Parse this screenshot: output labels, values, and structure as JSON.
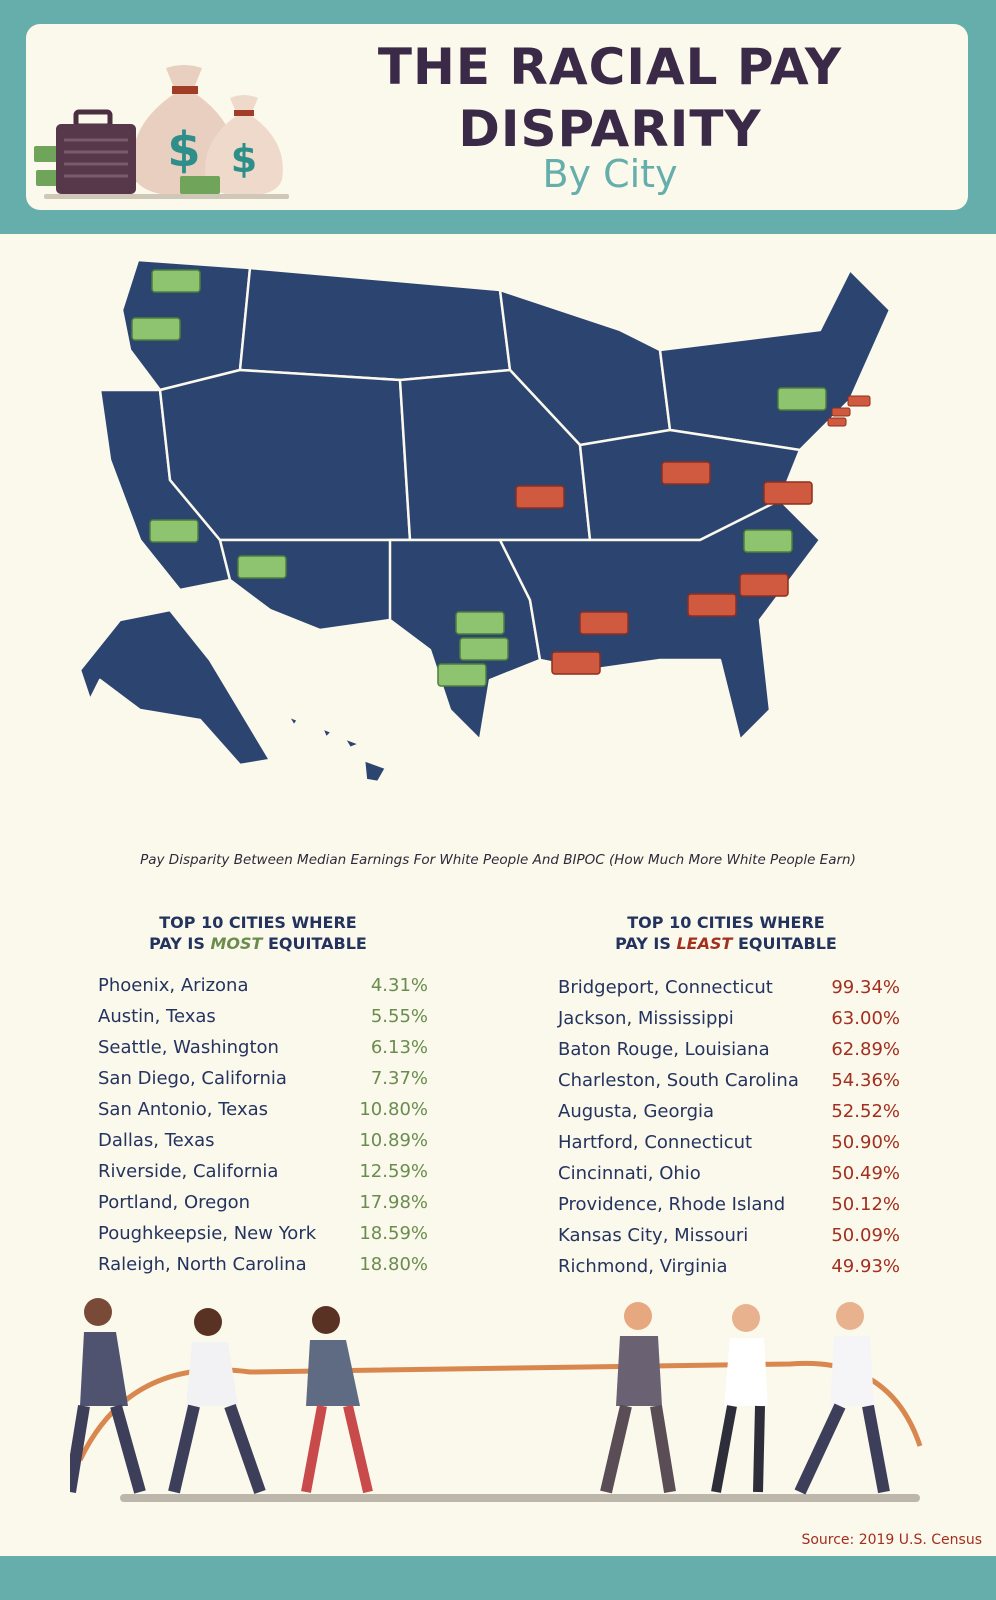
{
  "header": {
    "title_line1": "THE RACIAL PAY",
    "title_line2": "DISPARITY",
    "subtitle": "By City"
  },
  "caption": "Pay Disparity Between Median Earnings For White People And BIPOC (How Much More White People Earn)",
  "most_equitable": {
    "head_line1": "TOP 10 CITIES WHERE",
    "head_pre": "PAY IS ",
    "head_emph": "MOST",
    "head_post": " EQUITABLE",
    "rows": [
      {
        "city": "Phoenix, Arizona",
        "value": "4.31%"
      },
      {
        "city": "Austin, Texas",
        "value": "5.55%"
      },
      {
        "city": "Seattle, Washington",
        "value": "6.13%"
      },
      {
        "city": "San Diego, California",
        "value": "7.37%"
      },
      {
        "city": "San Antonio, Texas",
        "value": "10.80%"
      },
      {
        "city": "Dallas, Texas",
        "value": "10.89%"
      },
      {
        "city": "Riverside, California",
        "value": "12.59%"
      },
      {
        "city": "Portland, Oregon",
        "value": "17.98%"
      },
      {
        "city": "Poughkeepsie, New York",
        "value": "18.59%"
      },
      {
        "city": "Raleigh, North Carolina",
        "value": "18.80%"
      }
    ]
  },
  "least_equitable": {
    "head_line1": "TOP 10 CITIES WHERE",
    "head_pre": "PAY IS ",
    "head_emph": "LEAST",
    "head_post": " EQUITABLE",
    "rows": [
      {
        "city": "Bridgeport, Connecticut",
        "value": "99.34%"
      },
      {
        "city": "Jackson, Mississippi",
        "value": "63.00%"
      },
      {
        "city": "Baton Rouge, Louisiana",
        "value": "62.89%"
      },
      {
        "city": "Charleston, South Carolina",
        "value": "54.36%"
      },
      {
        "city": "Augusta, Georgia",
        "value": "52.52%"
      },
      {
        "city": "Hartford, Connecticut",
        "value": "50.90%"
      },
      {
        "city": "Cincinnati, Ohio",
        "value": "50.49%"
      },
      {
        "city": "Providence, Rhode Island",
        "value": "50.12%"
      },
      {
        "city": "Kansas City, Missouri",
        "value": "50.09%"
      },
      {
        "city": "Richmond, Virginia",
        "value": "49.93%"
      }
    ]
  },
  "source": "Source: 2019 U.S. Census",
  "colors": {
    "teal": "#66aeab",
    "navy": "#23335e",
    "good": "#6a8d4e",
    "bad": "#a32f1e",
    "map": "#2c4470"
  },
  "icons": [
    "money-bag-icon",
    "briefcase-icon",
    "cash-bill-icon"
  ]
}
